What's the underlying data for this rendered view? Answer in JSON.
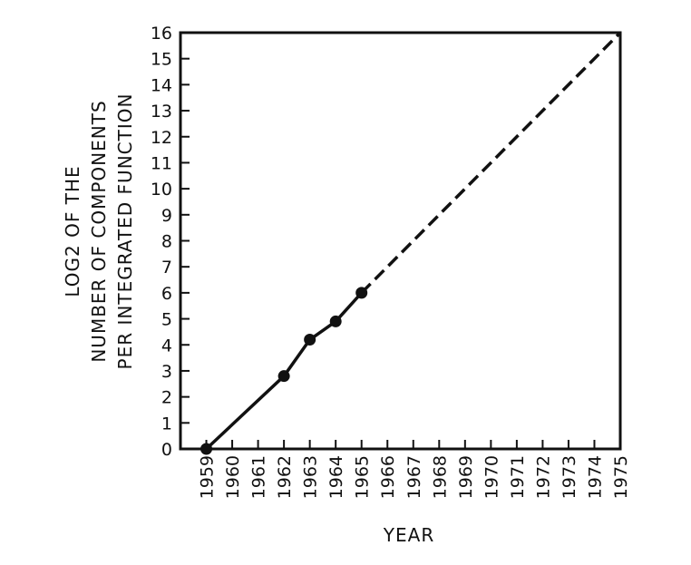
{
  "chart_data": {
    "type": "line",
    "title": "",
    "xlabel": "YEAR",
    "ylabel_lines": [
      "LOG2 OF THE",
      "NUMBER OF COMPONENTS",
      "PER INTEGRATED FUNCTION"
    ],
    "x_ticks": [
      "1959",
      "1960",
      "1961",
      "1962",
      "1963",
      "1964",
      "1965",
      "1966",
      "1967",
      "1968",
      "1969",
      "1970",
      "1971",
      "1972",
      "1973",
      "1974",
      "1975"
    ],
    "y_ticks": [
      "0",
      "1",
      "2",
      "3",
      "4",
      "5",
      "6",
      "7",
      "8",
      "9",
      "10",
      "11",
      "12",
      "13",
      "14",
      "15",
      "16"
    ],
    "xlim": [
      1958,
      1975
    ],
    "ylim": [
      0,
      16
    ],
    "grid": false,
    "series": [
      {
        "style": "solid",
        "markers": true,
        "x": [
          1959,
          1962,
          1963,
          1964,
          1965
        ],
        "y": [
          0,
          2.8,
          4.2,
          4.9,
          6
        ]
      },
      {
        "style": "dashed",
        "markers": false,
        "x": [
          1965,
          1975
        ],
        "y": [
          6,
          16
        ]
      }
    ],
    "color": "#111111"
  }
}
